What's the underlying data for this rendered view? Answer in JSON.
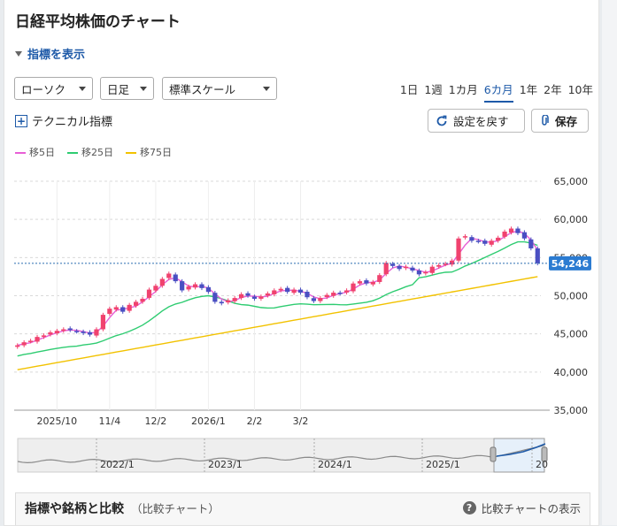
{
  "title": "日経平均株価のチャート",
  "indicator_toggle": "指標を表示",
  "controls": {
    "chart_type": "ローソク",
    "interval": "日足",
    "scale": "標準スケール",
    "periods": [
      "1日",
      "1週",
      "1カ月",
      "6カ月",
      "1年",
      "2年",
      "10年"
    ],
    "active_period": "6カ月",
    "technical": "テクニカル指標",
    "reset": "設定を戻す",
    "save": "保存"
  },
  "colors": {
    "accent": "#1e5aa8",
    "ma5": "#e85fd6",
    "ma25": "#2ecc71",
    "ma75": "#f2c200",
    "up": "#f0426e",
    "down": "#4a4fc2"
  },
  "icons": {
    "reset": "reset-icon",
    "save": "paperclip-icon",
    "help": "question-icon"
  },
  "chart_data": {
    "type": "candlestick",
    "legend": [
      "移5日",
      "移25日",
      "移75日"
    ],
    "y_ticks": [
      "65,000",
      "60,000",
      "55,000",
      "50,000",
      "45,000",
      "40,000",
      "35,000"
    ],
    "ylim": [
      35000,
      65000
    ],
    "x_ticks": [
      "2025/10",
      "11/4",
      "12/2",
      "2026/1",
      "2/2",
      "3/2"
    ],
    "last_price": 54246,
    "last_price_label": "54,246",
    "closes": [
      43500,
      43900,
      44100,
      44600,
      44800,
      45200,
      45400,
      45600,
      45500,
      45300,
      45100,
      44900,
      45600,
      47500,
      48300,
      48500,
      47900,
      48800,
      49200,
      49600,
      50800,
      51300,
      52200,
      52900,
      51900,
      50700,
      51200,
      51500,
      51000,
      50500,
      49200,
      49000,
      49400,
      49700,
      50200,
      50000,
      49600,
      49900,
      50300,
      50700,
      50900,
      50500,
      50800,
      50400,
      49800,
      49300,
      49700,
      50100,
      50400,
      50300,
      50700,
      51600,
      51900,
      51600,
      51800,
      52700,
      54300,
      53900,
      53500,
      53800,
      53300,
      52800,
      53100,
      53800,
      54000,
      54200,
      54600,
      57500,
      57800,
      57200,
      57100,
      56800,
      57200,
      57600,
      58400,
      58800,
      58200,
      57500,
      56200,
      54246
    ]
  },
  "navigator": {
    "labels": [
      "2022/1",
      "2023/1",
      "2024/1",
      "2025/1",
      "20"
    ]
  },
  "compare": {
    "title": "指標や銘柄と比較",
    "subtitle": "（比較チャート）",
    "help": "比較チャートの表示"
  }
}
